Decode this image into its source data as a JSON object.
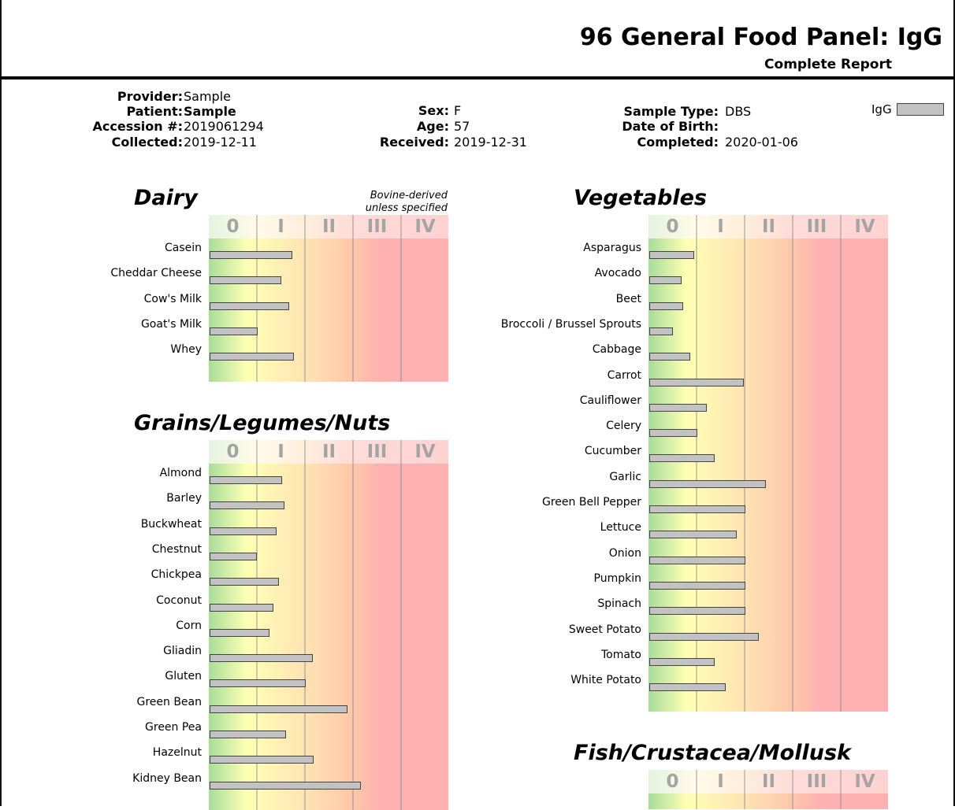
{
  "report": {
    "title": "96 General Food Panel: IgG",
    "subtitle": "Complete Report"
  },
  "patient_info": {
    "provider_label": "Provider:",
    "provider": "Sample",
    "patient_label": "Patient:",
    "patient": "Sample",
    "accession_label": "Accession #:",
    "accession": "2019061294",
    "collected_label": "Collected:",
    "collected": "2019-12-11",
    "sex_label": "Sex:",
    "sex": "F",
    "age_label": "Age:",
    "age": "57",
    "received_label": "Received:",
    "received": "2019-12-31",
    "sample_type_label": "Sample Type:",
    "sample_type": "DBS",
    "dob_label": "Date of Birth:",
    "dob": "",
    "completed_label": "Completed:",
    "completed": "2020-01-06"
  },
  "legend": {
    "label": "IgG",
    "color": "#c2c2c2"
  },
  "class_labels": [
    "0",
    "I",
    "II",
    "III",
    "IV"
  ],
  "chart_data": [
    {
      "type": "bar",
      "title": "Dairy",
      "note": [
        "Bovine-derived",
        "unless specified"
      ],
      "orientation": "horizontal",
      "xlim": [
        0,
        5
      ],
      "categories": [
        "Casein",
        "Cheddar Cheese",
        "Cow's Milk",
        "Goat's Milk",
        "Whey"
      ],
      "values": [
        1.72,
        1.49,
        1.66,
        1.01,
        1.76
      ]
    },
    {
      "type": "bar",
      "title": "Grains/Legumes/Nuts",
      "orientation": "horizontal",
      "xlim": [
        0,
        5
      ],
      "categories": [
        "Almond",
        "Barley",
        "Buckwheat",
        "Chestnut",
        "Chickpea",
        "Coconut",
        "Corn",
        "Gliadin",
        "Gluten",
        "Green Bean",
        "Green Pea",
        "Hazelnut",
        "Kidney Bean"
      ],
      "values": [
        1.52,
        1.56,
        1.39,
        0.99,
        1.45,
        1.34,
        1.25,
        2.15,
        2.0,
        2.88,
        1.59,
        2.17,
        3.15
      ]
    },
    {
      "type": "bar",
      "title": "Vegetables",
      "orientation": "horizontal",
      "xlim": [
        0,
        5
      ],
      "categories": [
        "Asparagus",
        "Avocado",
        "Beet",
        "Broccoli / Brussel Sprouts",
        "Cabbage",
        "Carrot",
        "Cauliflower",
        "Celery",
        "Cucumber",
        "Garlic",
        "Green Bell Pepper",
        "Lettuce",
        "Onion",
        "Pumpkin",
        "Spinach",
        "Sweet Potato",
        "Tomato",
        "White Potato"
      ],
      "values": [
        0.94,
        0.68,
        0.7,
        0.5,
        0.85,
        1.98,
        1.2,
        1.0,
        1.36,
        2.43,
        2.01,
        1.83,
        2.0,
        2.01,
        2.0,
        2.28,
        1.37,
        1.59
      ]
    },
    {
      "type": "bar",
      "title": "Fish/Crustacea/Mollusk",
      "orientation": "horizontal",
      "xlim": [
        0,
        5
      ],
      "categories": [],
      "values": []
    }
  ]
}
